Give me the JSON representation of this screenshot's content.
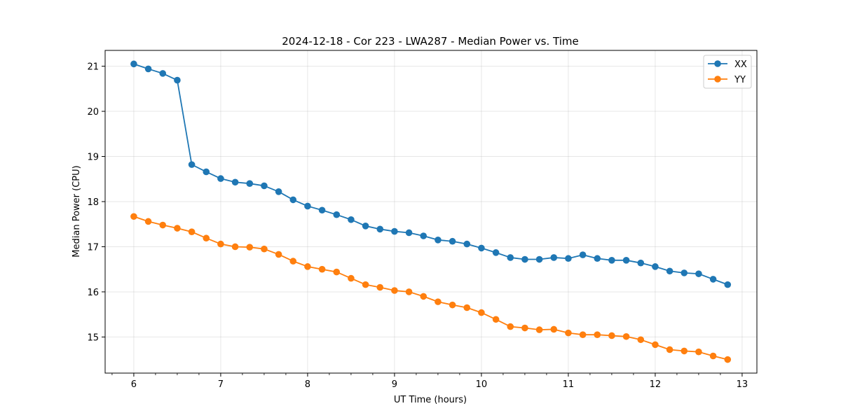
{
  "chart_data": {
    "type": "line",
    "title": "2024-12-18 - Cor 223 - LWA287 - Median Power vs. Time",
    "xlabel": "UT Time (hours)",
    "ylabel": "Median Power (CPU)",
    "xlim": [
      5.67,
      13.17
    ],
    "ylim": [
      14.2,
      21.35
    ],
    "xticks": [
      6,
      7,
      8,
      9,
      10,
      11,
      12,
      13
    ],
    "xtick_labels": [
      "6",
      "7",
      "8",
      "9",
      "10",
      "11",
      "12",
      "13"
    ],
    "xminor_step": 0.25,
    "yticks": [
      15,
      16,
      17,
      18,
      19,
      20,
      21
    ],
    "ytick_labels": [
      "15",
      "16",
      "17",
      "18",
      "19",
      "20",
      "21"
    ],
    "grid": true,
    "legend_position": "top-right",
    "x": [
      6.0,
      6.1667,
      6.3333,
      6.5,
      6.6667,
      6.8333,
      7.0,
      7.1667,
      7.3333,
      7.5,
      7.6667,
      7.8333,
      8.0,
      8.1667,
      8.3333,
      8.5,
      8.6667,
      8.8333,
      9.0,
      9.1667,
      9.3333,
      9.5,
      9.6667,
      9.8333,
      10.0,
      10.1667,
      10.3333,
      10.5,
      10.6667,
      10.8333,
      11.0,
      11.1667,
      11.3333,
      11.5,
      11.6667,
      11.8333,
      12.0,
      12.1667,
      12.3333,
      12.5,
      12.6667,
      12.8333
    ],
    "series": [
      {
        "name": "XX",
        "color": "#1f77b4",
        "values": [
          21.05,
          20.94,
          20.84,
          20.69,
          18.82,
          18.66,
          18.51,
          18.43,
          18.4,
          18.35,
          18.22,
          18.04,
          17.9,
          17.81,
          17.71,
          17.6,
          17.46,
          17.39,
          17.34,
          17.31,
          17.24,
          17.15,
          17.12,
          17.06,
          16.97,
          16.87,
          16.76,
          16.72,
          16.72,
          16.76,
          16.74,
          16.82,
          16.74,
          16.7,
          16.7,
          16.64,
          16.56,
          16.46,
          16.42,
          16.4,
          16.28,
          16.16
        ]
      },
      {
        "name": "YY",
        "color": "#ff7f0e",
        "values": [
          17.67,
          17.56,
          17.48,
          17.41,
          17.33,
          17.19,
          17.06,
          17.0,
          16.99,
          16.95,
          16.83,
          16.68,
          16.56,
          16.5,
          16.44,
          16.3,
          16.16,
          16.1,
          16.03,
          16.0,
          15.9,
          15.78,
          15.71,
          15.65,
          15.54,
          15.39,
          15.23,
          15.2,
          15.16,
          15.17,
          15.09,
          15.05,
          15.05,
          15.03,
          15.01,
          14.94,
          14.83,
          14.72,
          14.69,
          14.67,
          14.58,
          14.5
        ]
      }
    ]
  }
}
